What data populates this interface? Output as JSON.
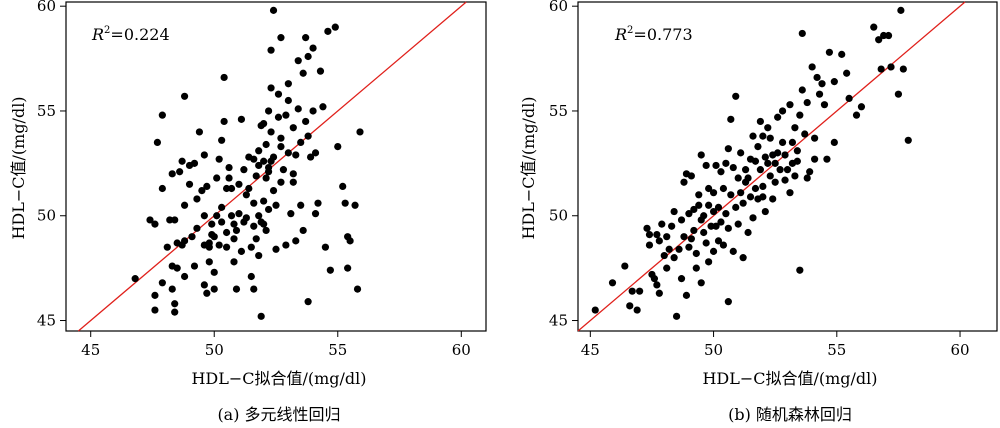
{
  "chart_data": [
    {
      "type": "scatter",
      "caption": "(a) 多元线性回归",
      "xlabel": "HDL−C拟合值/(mg/dl)",
      "ylabel": "HDL−C值/(mg/dl)",
      "annotation": {
        "prefix": "R",
        "sup": "2",
        "value": "=0.224"
      },
      "xlim": [
        44,
        61
      ],
      "ylim": [
        44.5,
        60.2
      ],
      "xticks": [
        45,
        50,
        55,
        60
      ],
      "yticks": [
        45,
        50,
        55,
        60
      ],
      "reference_line": "y=x",
      "point_color": "#000000",
      "line_color": "#e0201b",
      "points": [
        [
          46.8,
          47.0
        ],
        [
          47.4,
          49.8
        ],
        [
          47.6,
          45.5
        ],
        [
          47.6,
          46.2
        ],
        [
          47.6,
          49.6
        ],
        [
          47.7,
          53.5
        ],
        [
          47.9,
          54.8
        ],
        [
          47.9,
          51.3
        ],
        [
          47.9,
          46.8
        ],
        [
          48.1,
          48.5
        ],
        [
          48.2,
          49.8
        ],
        [
          48.3,
          47.6
        ],
        [
          48.3,
          46.5
        ],
        [
          48.3,
          52.0
        ],
        [
          48.4,
          45.8
        ],
        [
          48.4,
          45.4
        ],
        [
          48.4,
          49.8
        ],
        [
          48.5,
          47.5
        ],
        [
          48.5,
          48.7
        ],
        [
          48.6,
          52.1
        ],
        [
          48.7,
          48.6
        ],
        [
          48.7,
          52.6
        ],
        [
          48.8,
          55.7
        ],
        [
          48.8,
          50.5
        ],
        [
          48.8,
          48.8
        ],
        [
          48.8,
          47.1
        ],
        [
          49.0,
          52.4
        ],
        [
          49.0,
          51.5
        ],
        [
          49.1,
          49.0
        ],
        [
          49.2,
          47.6
        ],
        [
          49.2,
          52.5
        ],
        [
          49.3,
          50.8
        ],
        [
          49.3,
          49.4
        ],
        [
          49.4,
          54.0
        ],
        [
          49.5,
          51.2
        ],
        [
          49.6,
          48.6
        ],
        [
          49.6,
          46.7
        ],
        [
          49.6,
          52.9
        ],
        [
          49.6,
          50.0
        ],
        [
          49.7,
          46.3
        ],
        [
          49.7,
          51.4
        ],
        [
          49.8,
          48.7
        ],
        [
          49.8,
          47.8
        ],
        [
          49.8,
          48.5
        ],
        [
          49.9,
          49.1
        ],
        [
          49.9,
          49.6
        ],
        [
          50.0,
          46.5
        ],
        [
          50.0,
          47.3
        ],
        [
          50.0,
          49.0
        ],
        [
          50.1,
          50.0
        ],
        [
          50.1,
          51.8
        ],
        [
          50.2,
          52.7
        ],
        [
          50.2,
          48.6
        ],
        [
          50.3,
          49.7
        ],
        [
          50.3,
          50.4
        ],
        [
          50.3,
          53.6
        ],
        [
          50.4,
          54.5
        ],
        [
          50.4,
          56.6
        ],
        [
          50.5,
          49.2
        ],
        [
          50.5,
          48.5
        ],
        [
          50.5,
          51.3
        ],
        [
          50.6,
          52.3
        ],
        [
          50.6,
          51.8
        ],
        [
          50.7,
          51.3
        ],
        [
          50.7,
          50.0
        ],
        [
          50.8,
          49.6
        ],
        [
          50.8,
          48.9
        ],
        [
          50.8,
          47.8
        ],
        [
          50.9,
          49.3
        ],
        [
          50.9,
          46.5
        ],
        [
          51.0,
          51.5
        ],
        [
          51.0,
          50.1
        ],
        [
          51.1,
          48.3
        ],
        [
          51.1,
          54.6
        ],
        [
          51.2,
          49.7
        ],
        [
          51.2,
          52.2
        ],
        [
          51.3,
          49.9
        ],
        [
          51.3,
          51.0
        ],
        [
          51.4,
          52.8
        ],
        [
          51.4,
          51.3
        ],
        [
          51.5,
          48.5
        ],
        [
          51.5,
          47.1
        ],
        [
          51.6,
          50.6
        ],
        [
          51.6,
          49.5
        ],
        [
          51.6,
          46.5
        ],
        [
          51.6,
          52.7
        ],
        [
          51.7,
          48.9
        ],
        [
          51.7,
          51.9
        ],
        [
          51.8,
          53.1
        ],
        [
          51.8,
          48.1
        ],
        [
          51.8,
          50.0
        ],
        [
          51.8,
          52.4
        ],
        [
          51.9,
          45.2
        ],
        [
          51.9,
          54.3
        ],
        [
          51.9,
          49.7
        ],
        [
          52.0,
          49.6
        ],
        [
          52.0,
          50.7
        ],
        [
          52.0,
          52.6
        ],
        [
          52.0,
          54.4
        ],
        [
          52.1,
          51.8
        ],
        [
          52.1,
          49.3
        ],
        [
          52.1,
          53.4
        ],
        [
          52.2,
          52.1
        ],
        [
          52.2,
          50.3
        ],
        [
          52.2,
          55.0
        ],
        [
          52.2,
          52.3
        ],
        [
          52.3,
          57.9
        ],
        [
          52.3,
          56.1
        ],
        [
          52.3,
          54.0
        ],
        [
          52.3,
          52.6
        ],
        [
          52.4,
          59.8
        ],
        [
          52.4,
          52.8
        ],
        [
          52.4,
          51.2
        ],
        [
          52.5,
          48.4
        ],
        [
          52.5,
          50.5
        ],
        [
          52.6,
          55.8
        ],
        [
          52.6,
          54.7
        ],
        [
          52.7,
          58.5
        ],
        [
          52.7,
          53.3
        ],
        [
          52.7,
          51.6
        ],
        [
          52.7,
          53.7
        ],
        [
          52.8,
          52.2
        ],
        [
          52.9,
          48.6
        ],
        [
          52.9,
          54.8
        ],
        [
          53.0,
          56.3
        ],
        [
          53.0,
          55.5
        ],
        [
          53.0,
          53.0
        ],
        [
          53.1,
          50.1
        ],
        [
          53.2,
          54.2
        ],
        [
          53.2,
          52.0
        ],
        [
          53.2,
          51.6
        ],
        [
          53.3,
          52.9
        ],
        [
          53.3,
          48.8
        ],
        [
          53.4,
          57.4
        ],
        [
          53.4,
          55.1
        ],
        [
          53.5,
          53.5
        ],
        [
          53.5,
          50.5
        ],
        [
          53.6,
          56.8
        ],
        [
          53.6,
          49.3
        ],
        [
          53.7,
          58.5
        ],
        [
          53.7,
          54.5
        ],
        [
          53.8,
          57.6
        ],
        [
          53.8,
          53.8
        ],
        [
          53.8,
          45.9
        ],
        [
          53.9,
          52.8
        ],
        [
          54.0,
          55.0
        ],
        [
          54.0,
          58.0
        ],
        [
          54.1,
          50.1
        ],
        [
          54.1,
          53.0
        ],
        [
          54.2,
          50.6
        ],
        [
          54.3,
          56.9
        ],
        [
          54.4,
          55.2
        ],
        [
          54.5,
          48.5
        ],
        [
          54.6,
          58.8
        ],
        [
          54.7,
          47.4
        ],
        [
          54.9,
          59.0
        ],
        [
          55.0,
          53.3
        ],
        [
          55.2,
          51.4
        ],
        [
          55.3,
          50.6
        ],
        [
          55.4,
          49.0
        ],
        [
          55.4,
          47.5
        ],
        [
          55.5,
          48.8
        ],
        [
          55.7,
          50.5
        ],
        [
          55.8,
          46.5
        ],
        [
          55.9,
          54.0
        ]
      ]
    },
    {
      "type": "scatter",
      "caption": "(b) 随机森林回归",
      "xlabel": "HDL−C拟合值/(mg/dl)",
      "ylabel": "HDL−C值/(mg/dl)",
      "annotation": {
        "prefix": "R",
        "sup": "2",
        "value": "=0.773"
      },
      "xlim": [
        44.5,
        61.5
      ],
      "ylim": [
        44.5,
        60.2
      ],
      "xticks": [
        45,
        50,
        55,
        60
      ],
      "yticks": [
        45,
        50,
        55,
        60
      ],
      "reference_line": "y=x",
      "point_color": "#000000",
      "line_color": "#e0201b",
      "points": [
        [
          45.2,
          45.5
        ],
        [
          45.9,
          46.8
        ],
        [
          46.4,
          47.6
        ],
        [
          46.6,
          45.7
        ],
        [
          46.7,
          46.4
        ],
        [
          46.9,
          45.5
        ],
        [
          47.0,
          46.4
        ],
        [
          47.3,
          49.4
        ],
        [
          47.4,
          49.1
        ],
        [
          47.4,
          48.6
        ],
        [
          47.5,
          47.2
        ],
        [
          47.6,
          47.0
        ],
        [
          47.7,
          46.7
        ],
        [
          47.8,
          48.8
        ],
        [
          47.8,
          46.3
        ],
        [
          47.9,
          49.6
        ],
        [
          48.0,
          48.1
        ],
        [
          48.1,
          49.0
        ],
        [
          48.1,
          47.5
        ],
        [
          48.2,
          48.4
        ],
        [
          48.3,
          49.5
        ],
        [
          48.4,
          50.2
        ],
        [
          48.4,
          48.0
        ],
        [
          48.5,
          45.2
        ],
        [
          48.6,
          48.4
        ],
        [
          48.7,
          47.0
        ],
        [
          48.8,
          49.0
        ],
        [
          48.8,
          51.6
        ],
        [
          48.9,
          52.0
        ],
        [
          48.9,
          46.2
        ],
        [
          49.0,
          48.5
        ],
        [
          49.0,
          50.1
        ],
        [
          49.1,
          51.9
        ],
        [
          49.1,
          48.9
        ],
        [
          49.2,
          50.3
        ],
        [
          49.2,
          49.3
        ],
        [
          49.3,
          47.5
        ],
        [
          49.3,
          48.2
        ],
        [
          49.4,
          50.5
        ],
        [
          49.4,
          51.0
        ],
        [
          49.5,
          49.8
        ],
        [
          49.5,
          46.8
        ],
        [
          49.6,
          50.0
        ],
        [
          49.6,
          49.2
        ],
        [
          49.7,
          48.7
        ],
        [
          49.7,
          52.4
        ],
        [
          49.8,
          51.3
        ],
        [
          49.8,
          50.5
        ],
        [
          49.8,
          47.8
        ],
        [
          49.9,
          49.5
        ],
        [
          50.0,
          48.3
        ],
        [
          50.0,
          51.1
        ],
        [
          50.0,
          50.2
        ],
        [
          50.1,
          52.4
        ],
        [
          50.1,
          49.5
        ],
        [
          50.2,
          50.4
        ],
        [
          50.2,
          48.8
        ],
        [
          50.3,
          52.1
        ],
        [
          50.3,
          49.7
        ],
        [
          50.4,
          51.3
        ],
        [
          50.4,
          48.6
        ],
        [
          50.5,
          52.5
        ],
        [
          50.5,
          50.1
        ],
        [
          50.6,
          45.9
        ],
        [
          50.6,
          49.4
        ],
        [
          50.7,
          54.6
        ],
        [
          50.7,
          51.0
        ],
        [
          50.8,
          52.3
        ],
        [
          50.8,
          48.3
        ],
        [
          50.9,
          50.4
        ],
        [
          50.9,
          55.7
        ],
        [
          51.0,
          51.8
        ],
        [
          51.0,
          49.6
        ],
        [
          51.1,
          53.0
        ],
        [
          51.1,
          51.1
        ],
        [
          51.2,
          50.6
        ],
        [
          51.2,
          48.0
        ],
        [
          51.3,
          52.2
        ],
        [
          51.3,
          51.6
        ],
        [
          51.4,
          49.2
        ],
        [
          51.5,
          52.7
        ],
        [
          51.5,
          50.9
        ],
        [
          51.6,
          53.8
        ],
        [
          51.6,
          49.9
        ],
        [
          51.7,
          52.6
        ],
        [
          51.7,
          51.3
        ],
        [
          51.8,
          53.3
        ],
        [
          51.8,
          50.8
        ],
        [
          51.9,
          54.5
        ],
        [
          51.9,
          52.2
        ],
        [
          52.0,
          53.8
        ],
        [
          52.0,
          51.4
        ],
        [
          52.1,
          52.8
        ],
        [
          52.1,
          50.2
        ],
        [
          52.2,
          54.2
        ],
        [
          52.2,
          52.5
        ],
        [
          52.3,
          51.9
        ],
        [
          52.3,
          53.7
        ],
        [
          52.4,
          52.9
        ],
        [
          52.4,
          50.8
        ],
        [
          52.5,
          52.5
        ],
        [
          52.5,
          51.6
        ],
        [
          52.6,
          54.7
        ],
        [
          52.6,
          53.0
        ],
        [
          52.7,
          52.2
        ],
        [
          52.8,
          55.0
        ],
        [
          52.8,
          53.5
        ],
        [
          52.9,
          52.9
        ],
        [
          52.9,
          51.7
        ],
        [
          53.0,
          52.2
        ],
        [
          53.1,
          51.1
        ],
        [
          53.1,
          55.3
        ],
        [
          53.2,
          53.5
        ],
        [
          53.2,
          52.5
        ],
        [
          53.3,
          54.2
        ],
        [
          53.3,
          51.9
        ],
        [
          53.4,
          53.1
        ],
        [
          53.4,
          52.6
        ],
        [
          53.5,
          47.4
        ],
        [
          53.5,
          54.8
        ],
        [
          53.6,
          58.7
        ],
        [
          53.6,
          56.0
        ],
        [
          53.7,
          53.9
        ],
        [
          53.8,
          51.8
        ],
        [
          53.8,
          55.4
        ],
        [
          53.9,
          52.1
        ],
        [
          54.0,
          57.1
        ],
        [
          54.1,
          53.7
        ],
        [
          54.1,
          52.7
        ],
        [
          54.2,
          56.6
        ],
        [
          54.3,
          55.8
        ],
        [
          54.4,
          56.3
        ],
        [
          54.5,
          55.3
        ],
        [
          54.6,
          52.7
        ],
        [
          54.7,
          57.8
        ],
        [
          54.9,
          56.4
        ],
        [
          54.9,
          53.5
        ],
        [
          55.2,
          57.7
        ],
        [
          55.4,
          56.8
        ],
        [
          55.5,
          55.6
        ],
        [
          55.8,
          54.8
        ],
        [
          56.0,
          55.2
        ],
        [
          56.5,
          59.0
        ],
        [
          56.7,
          58.4
        ],
        [
          56.9,
          58.6
        ],
        [
          57.1,
          58.6
        ],
        [
          57.2,
          57.1
        ],
        [
          57.5,
          55.8
        ],
        [
          57.6,
          59.8
        ],
        [
          57.7,
          57.0
        ],
        [
          57.9,
          53.6
        ],
        [
          56.8,
          57.0
        ],
        [
          52.0,
          50.9
        ],
        [
          51.4,
          51.8
        ],
        [
          50.6,
          53.2
        ],
        [
          49.5,
          52.9
        ],
        [
          48.7,
          49.8
        ],
        [
          47.7,
          49.1
        ]
      ]
    }
  ]
}
